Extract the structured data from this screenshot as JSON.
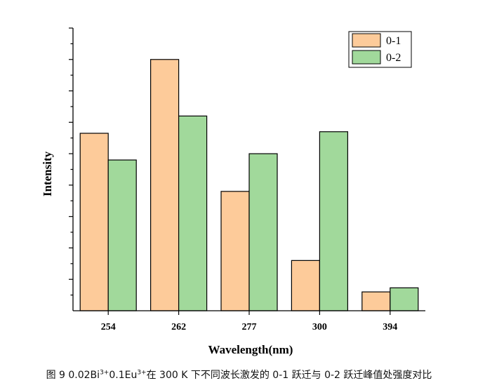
{
  "chart_data": {
    "type": "bar",
    "title": "",
    "xlabel": "Wavelength(nm)",
    "ylabel": "Intensity",
    "categories": [
      "254",
      "262",
      "277",
      "300",
      "394"
    ],
    "series": [
      {
        "name": "0-1",
        "color": "#fdcb9a",
        "values": [
          0.565,
          0.8,
          0.38,
          0.16,
          0.06
        ]
      },
      {
        "name": "0-2",
        "color": "#a1d99b",
        "values": [
          0.48,
          0.62,
          0.5,
          0.57,
          0.073
        ]
      }
    ],
    "ylim": [
      0,
      0.9
    ],
    "y_tick_labels": false,
    "grid": false,
    "legend": "top-right"
  },
  "caption": {
    "prefix": "图 9 0.02Bi",
    "sup1": "3+",
    "middle": "0.1Eu",
    "sup2": "3+",
    "suffix": "在 300 K 下不同波长激发的 0-1 跃迁与 0-2 跃迁峰值处强度对比"
  }
}
